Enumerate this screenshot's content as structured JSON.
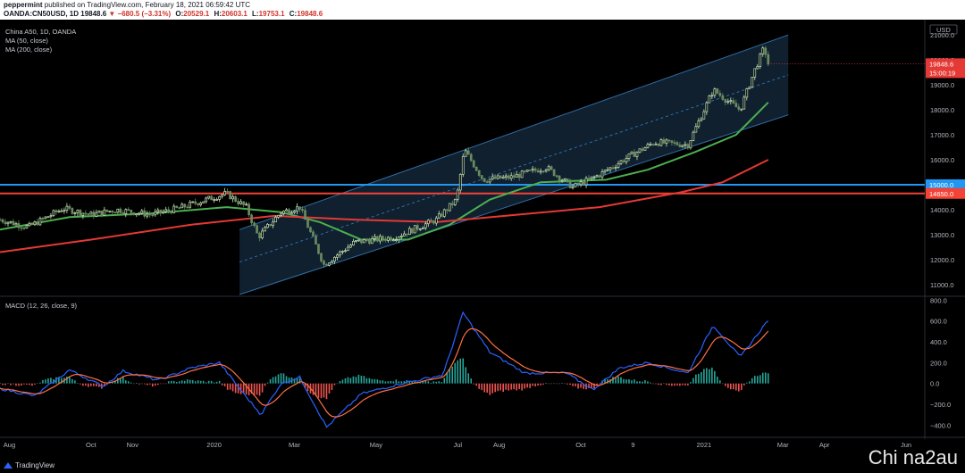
{
  "header": {
    "publish_user": "peppermint",
    "publish_text": "published on TradingView.com, February 18, 2021 06:59:42 UTC",
    "symbol": "OANDA:CN50USD, 1D",
    "last": "19848.6",
    "change": "▼ −680.5 (−3.31%)",
    "open_label": "O:",
    "open": "20529.1",
    "high_label": "H:",
    "high": "20603.1",
    "low_label": "L:",
    "low": "19753.1",
    "close_label": "C:",
    "close": "19848.6"
  },
  "legend": {
    "title": "China A50, 1D, OANDA",
    "ma50": "MA (50, close)",
    "ma200": "MA (200, close)",
    "macd": "MACD (12, 26, close, 9)"
  },
  "branding": {
    "logo_text": "TradingView",
    "watermark": "Chi na2au"
  },
  "colors": {
    "background": "#000000",
    "up": "#b8e0a8",
    "down": "#b8e0a8",
    "ma50": "#4caf50",
    "ma200": "#e53935",
    "channel_fill": "#1e3a55",
    "channel_border": "#2f6fa8",
    "level_blue": "#2196f3",
    "level_red": "#f44336",
    "last_price_tag": "#e53935",
    "macd_line": "#2962ff",
    "signal_line": "#ff7043",
    "hist_pos": "#26a69a",
    "hist_neg": "#ef5350"
  },
  "chart_data": [
    {
      "type": "candlestick",
      "title": "China A50, 1D, OANDA",
      "y_axis_unit": "USD",
      "y_ticks": [
        11000,
        12000,
        13000,
        14000,
        15000,
        16000,
        17000,
        18000,
        19000,
        20000,
        21000
      ],
      "x_ticks": [
        "Aug",
        "Oct",
        "Nov",
        "2020",
        "Mar",
        "May",
        "Jul",
        "Aug",
        "Oct",
        "9",
        "2021",
        "Mar",
        "Apr",
        "Jun"
      ],
      "x_tick_dates": [
        "2019-08-01",
        "2019-10-01",
        "2019-11-01",
        "2020-01-01",
        "2020-03-01",
        "2020-05-01",
        "2020-07-01",
        "2020-08-01",
        "2020-10-01",
        "2020-11-09",
        "2021-01-01",
        "2021-03-01",
        "2021-04-01",
        "2021-06-01"
      ],
      "x_range": [
        "2019-07-25",
        "2021-06-15"
      ],
      "ylim": [
        10600,
        21400
      ],
      "price_path": [
        [
          "2019-07-25",
          13600
        ],
        [
          "2019-08-15",
          13300
        ],
        [
          "2019-09-10",
          14050
        ],
        [
          "2019-10-01",
          13800
        ],
        [
          "2019-10-20",
          14000
        ],
        [
          "2019-11-15",
          13800
        ],
        [
          "2019-12-05",
          14050
        ],
        [
          "2020-01-10",
          14650
        ],
        [
          "2020-01-25",
          14100
        ],
        [
          "2020-02-03",
          12900
        ],
        [
          "2020-02-20",
          13900
        ],
        [
          "2020-03-05",
          14100
        ],
        [
          "2020-03-23",
          11800
        ],
        [
          "2020-04-15",
          12700
        ],
        [
          "2020-05-15",
          12900
        ],
        [
          "2020-06-15",
          13600
        ],
        [
          "2020-06-30",
          14400
        ],
        [
          "2020-07-06",
          16400
        ],
        [
          "2020-07-20",
          15200
        ],
        [
          "2020-08-10",
          15300
        ],
        [
          "2020-09-05",
          15700
        ],
        [
          "2020-09-25",
          14900
        ],
        [
          "2020-10-15",
          15400
        ],
        [
          "2020-11-05",
          16100
        ],
        [
          "2020-11-25",
          16700
        ],
        [
          "2020-12-20",
          16600
        ],
        [
          "2021-01-08",
          18800
        ],
        [
          "2021-01-20",
          18300
        ],
        [
          "2021-01-28",
          18000
        ],
        [
          "2021-02-08",
          19600
        ],
        [
          "2021-02-15",
          20500
        ],
        [
          "2021-02-18",
          19848.6
        ]
      ],
      "series": [
        {
          "name": "MA (50, close)",
          "points": [
            [
              "2019-07-25",
              13200
            ],
            [
              "2019-09-15",
              13700
            ],
            [
              "2019-11-15",
              13850
            ],
            [
              "2020-01-10",
              14100
            ],
            [
              "2020-02-20",
              13900
            ],
            [
              "2020-03-20",
              13500
            ],
            [
              "2020-04-20",
              12800
            ],
            [
              "2020-05-25",
              12800
            ],
            [
              "2020-06-25",
              13400
            ],
            [
              "2020-07-25",
              14400
            ],
            [
              "2020-09-01",
              15100
            ],
            [
              "2020-10-20",
              15200
            ],
            [
              "2020-11-20",
              15600
            ],
            [
              "2020-12-25",
              16300
            ],
            [
              "2021-01-25",
              17000
            ],
            [
              "2021-02-18",
              18300
            ]
          ]
        },
        {
          "name": "MA (200, close)",
          "points": [
            [
              "2019-07-25",
              12300
            ],
            [
              "2019-10-01",
              12800
            ],
            [
              "2019-12-15",
              13400
            ],
            [
              "2020-02-15",
              13750
            ],
            [
              "2020-04-15",
              13600
            ],
            [
              "2020-06-15",
              13500
            ],
            [
              "2020-08-15",
              13800
            ],
            [
              "2020-10-15",
              14100
            ],
            [
              "2020-12-15",
              14700
            ],
            [
              "2021-01-15",
              15100
            ],
            [
              "2021-02-18",
              16000
            ]
          ]
        }
      ],
      "channel": {
        "start": "2020-01-20",
        "end": "2021-03-05",
        "lower_start": 10600,
        "lower_end": 17800,
        "upper_start": 13200,
        "upper_end": 21000
      },
      "levels": [
        {
          "label": "15000.0",
          "value": 15000,
          "color": "#2196f3"
        },
        {
          "label": "14650.0",
          "value": 14650,
          "color": "#f44336"
        }
      ],
      "last_price": {
        "label": "19848.6",
        "countdown": "15:00:19",
        "value": 19848.6
      }
    },
    {
      "type": "macd",
      "title": "MACD (12, 26, close, 9)",
      "y_ticks": [
        -400,
        -200,
        0,
        200,
        400,
        600,
        800
      ],
      "ylim": [
        -500,
        820
      ],
      "macd_path": [
        [
          "2019-07-25",
          -50
        ],
        [
          "2019-08-20",
          -120
        ],
        [
          "2019-09-15",
          130
        ],
        [
          "2019-10-10",
          -30
        ],
        [
          "2019-10-25",
          120
        ],
        [
          "2019-11-20",
          30
        ],
        [
          "2019-12-15",
          150
        ],
        [
          "2020-01-05",
          200
        ],
        [
          "2020-01-20",
          -50
        ],
        [
          "2020-02-05",
          -300
        ],
        [
          "2020-02-20",
          0
        ],
        [
          "2020-03-05",
          60
        ],
        [
          "2020-03-25",
          -420
        ],
        [
          "2020-04-20",
          -100
        ],
        [
          "2020-05-20",
          0
        ],
        [
          "2020-06-20",
          80
        ],
        [
          "2020-07-05",
          680
        ],
        [
          "2020-07-25",
          300
        ],
        [
          "2020-08-20",
          100
        ],
        [
          "2020-09-20",
          100
        ],
        [
          "2020-10-10",
          -60
        ],
        [
          "2020-10-30",
          150
        ],
        [
          "2020-11-20",
          200
        ],
        [
          "2020-12-20",
          100
        ],
        [
          "2021-01-08",
          560
        ],
        [
          "2021-01-28",
          250
        ],
        [
          "2021-02-18",
          610
        ]
      ]
    }
  ]
}
